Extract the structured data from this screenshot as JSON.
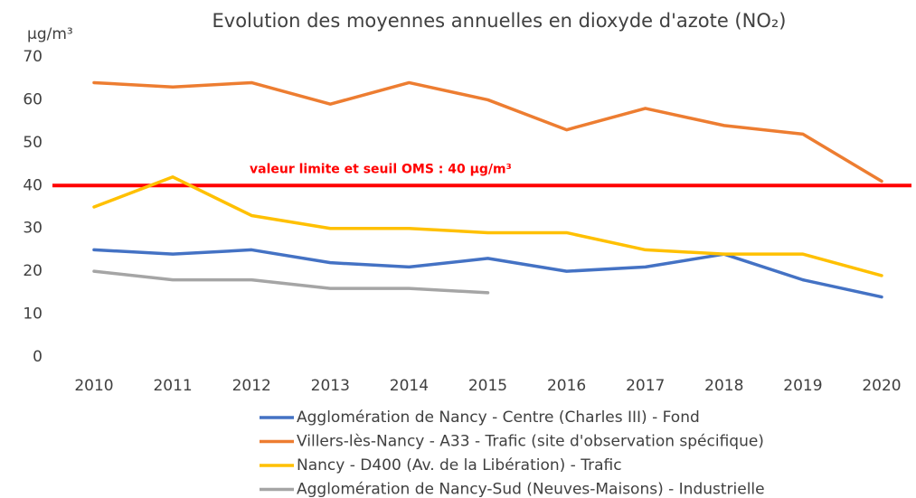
{
  "chart_data": {
    "type": "line",
    "title": "Evolution des moyennes annuelles en dioxyde d'azote (NO₂)",
    "y_label": "µg/m³",
    "categories": [
      "2010",
      "2011",
      "2012",
      "2013",
      "2014",
      "2015",
      "2016",
      "2017",
      "2018",
      "2019",
      "2020"
    ],
    "series": [
      {
        "name": "Agglomération de Nancy  - Centre (Charles III) - Fond",
        "color": "#4472c4",
        "values": [
          25,
          24,
          25,
          22,
          21,
          23,
          20,
          21,
          24,
          18,
          14
        ]
      },
      {
        "name": "Villers-lès-Nancy - A33 - Trafic (site d'observation spécifique)",
        "color": "#ed7d31",
        "values": [
          64,
          63,
          64,
          59,
          64,
          60,
          53,
          58,
          54,
          52,
          41
        ]
      },
      {
        "name": "Nancy - D400 (Av. de la Libération) - Trafic",
        "color": "#ffc000",
        "values": [
          35,
          42,
          33,
          30,
          30,
          29,
          29,
          25,
          24,
          24,
          19
        ]
      },
      {
        "name": "Agglomération de Nancy-Sud (Neuves-Maisons) - Industrielle",
        "color": "#a5a5a5",
        "values": [
          20,
          18,
          18,
          16,
          16,
          15,
          null,
          null,
          null,
          null,
          null
        ]
      }
    ],
    "reference_line": {
      "value": 40,
      "label": "valeur limite et seuil OMS : 40 µg/m³",
      "color": "#ff0000"
    },
    "ylim": [
      0,
      70
    ],
    "yticks": [
      0,
      10,
      20,
      30,
      40,
      50,
      60,
      70
    ],
    "grid": false,
    "legend": "bottom"
  }
}
